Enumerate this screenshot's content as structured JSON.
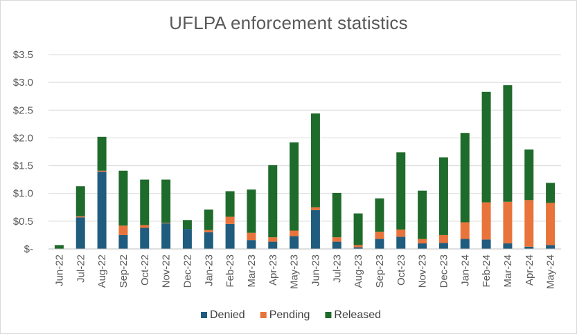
{
  "chart_data": {
    "type": "bar",
    "stacked": true,
    "title": "UFLPA enforcement statistics",
    "xlabel": "",
    "ylabel": "",
    "ylim": [
      0,
      3.5
    ],
    "y_ticks": [
      0,
      0.5,
      1.0,
      1.5,
      2.0,
      2.5,
      3.0,
      3.5
    ],
    "y_tick_labels": [
      "$-",
      "$0.5",
      "$1.0",
      "$1.5",
      "$2.0",
      "$2.5",
      "$3.0",
      "$3.5"
    ],
    "grid": true,
    "legend_position": "bottom",
    "categories": [
      "Jun-22",
      "Jul-22",
      "Aug-22",
      "Sep-22",
      "Oct-22",
      "Nov-22",
      "Dec-22",
      "Jan-23",
      "Feb-23",
      "Mar-23",
      "Apr-23",
      "May-23",
      "Jun-23",
      "Jul-23",
      "Aug-23",
      "Sep-23",
      "Oct-23",
      "Nov-23",
      "Dec-23",
      "Jan-24",
      "Feb-24",
      "Mar-24",
      "Apr-24",
      "May-24"
    ],
    "series": [
      {
        "name": "Denied",
        "color": "#1f5c7e",
        "values": [
          0.0,
          0.57,
          1.39,
          0.25,
          0.38,
          0.46,
          0.36,
          0.3,
          0.45,
          0.16,
          0.13,
          0.23,
          0.7,
          0.13,
          0.03,
          0.18,
          0.22,
          0.1,
          0.11,
          0.18,
          0.17,
          0.1,
          0.04,
          0.07
        ]
      },
      {
        "name": "Pending",
        "color": "#e8743b",
        "values": [
          0.0,
          0.02,
          0.02,
          0.17,
          0.05,
          0.01,
          0.0,
          0.04,
          0.13,
          0.13,
          0.08,
          0.1,
          0.05,
          0.08,
          0.04,
          0.13,
          0.13,
          0.08,
          0.14,
          0.3,
          0.67,
          0.75,
          0.84,
          0.76
        ]
      },
      {
        "name": "Released",
        "color": "#1e6b2b",
        "values": [
          0.07,
          0.54,
          0.61,
          0.99,
          0.82,
          0.78,
          0.16,
          0.37,
          0.46,
          0.78,
          1.3,
          1.59,
          1.69,
          0.8,
          0.57,
          0.6,
          1.39,
          0.87,
          1.4,
          1.61,
          1.99,
          2.1,
          0.91,
          0.36
        ]
      }
    ]
  }
}
